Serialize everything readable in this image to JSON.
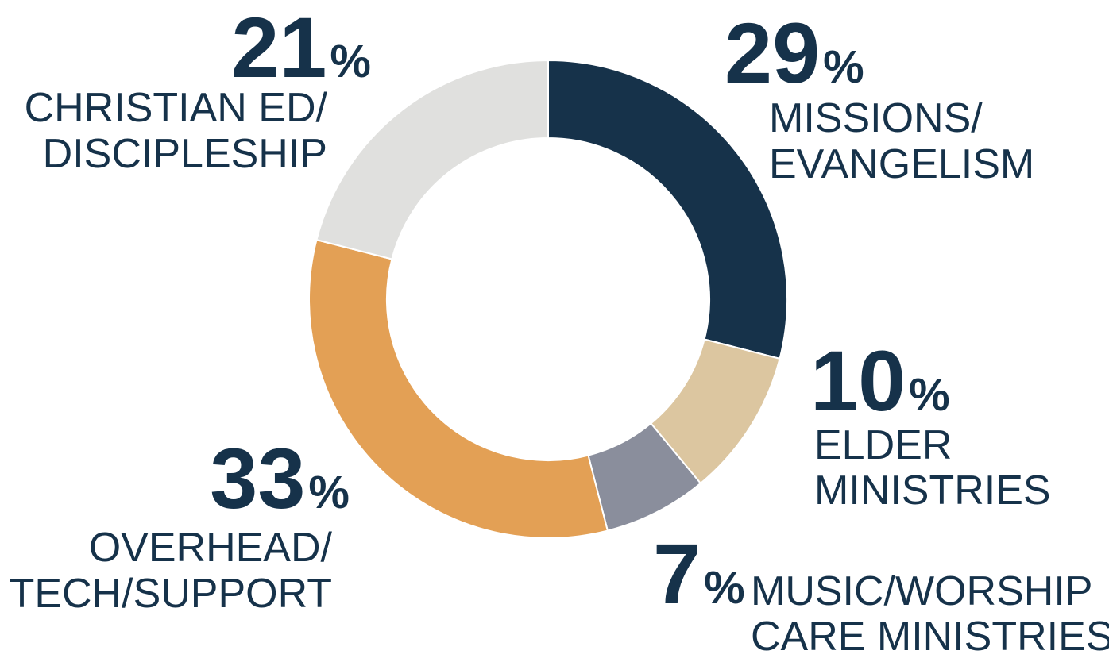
{
  "chart_data": {
    "type": "donut",
    "categories": [
      "MISSIONS/\nEVANGELISM",
      "ELDER\nMINISTRIES",
      "MUSIC/WORSHIP\nCARE MINISTRIES",
      "OVERHEAD/\nTECH/SUPPORT",
      "CHRISTIAN ED/\nDISCIPLESHIP"
    ],
    "values": [
      29,
      10,
      7,
      33,
      21
    ],
    "value_labels": [
      "29%",
      "10%",
      "7%",
      "33%",
      "21%"
    ],
    "colors": [
      "#16324a",
      "#dcc6a0",
      "#8a8e9c",
      "#e3a055",
      "#e0e0de"
    ]
  }
}
